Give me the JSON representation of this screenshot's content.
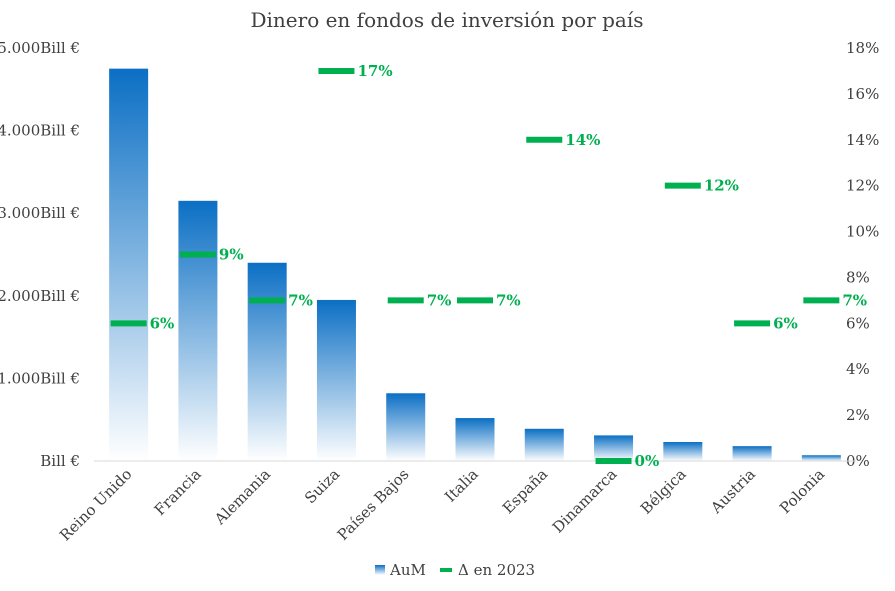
{
  "chart_data": {
    "type": "bar",
    "title": "Dinero en fondos de inversión por país",
    "categories": [
      "Reino Unido",
      "Francia",
      "Alemania",
      "Suiza",
      "Países Bajos",
      "Italia",
      "España",
      "Dinamarca",
      "Bélgica",
      "Austria",
      "Polonia"
    ],
    "series": [
      {
        "name": "AuM",
        "type": "bar",
        "axis": "left",
        "values": [
          4750,
          3150,
          2400,
          1950,
          820,
          520,
          390,
          310,
          230,
          180,
          70
        ]
      },
      {
        "name": "Δ en 2023",
        "type": "marker",
        "axis": "right",
        "values": [
          6,
          9,
          7,
          17,
          7,
          7,
          14,
          0,
          12,
          6,
          7
        ],
        "labels": [
          "6%",
          "9%",
          "7%",
          "17%",
          "7%",
          "7%",
          "14%",
          "0%",
          "12%",
          "6%",
          "7%"
        ]
      }
    ],
    "y_left": {
      "ylim": [
        0,
        5000
      ],
      "ticks": [
        0,
        1000,
        2000,
        3000,
        4000,
        5000
      ],
      "tick_labels": [
        "Bill €",
        "1.000Bill €",
        "2.000Bill €",
        "3.000Bill €",
        "4.000Bill €",
        "5.000Bill €"
      ]
    },
    "y_right": {
      "ylim": [
        0,
        18
      ],
      "ticks": [
        0,
        2,
        4,
        6,
        8,
        10,
        12,
        14,
        16,
        18
      ],
      "tick_labels": [
        "0%",
        "2%",
        "4%",
        "6%",
        "8%",
        "10%",
        "12%",
        "14%",
        "16%",
        "18%"
      ]
    },
    "legend": {
      "position": "bottom",
      "items": [
        "AuM",
        "Δ en 2023"
      ]
    },
    "colors": {
      "bar_top": "#0B6FC4",
      "bar_bottom": "#FFFFFF",
      "marker": "#00B050",
      "text": "#404040",
      "axis": "#D9D9D9"
    }
  }
}
